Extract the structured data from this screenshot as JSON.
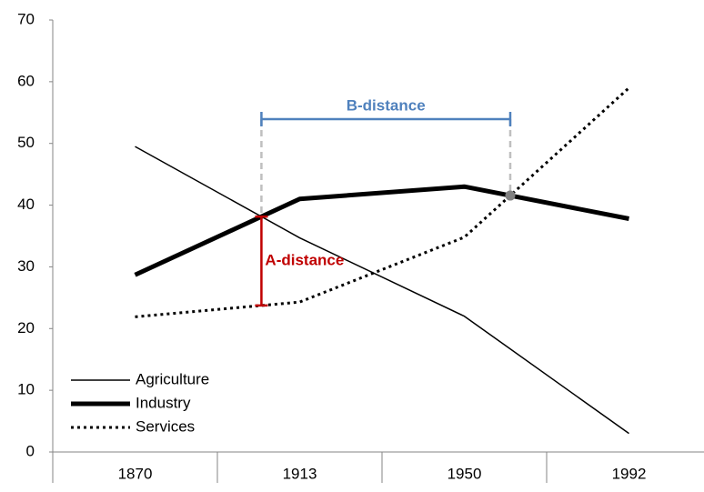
{
  "chart_data": {
    "type": "line",
    "categories": [
      "1870",
      "1913",
      "1950",
      "1992"
    ],
    "series": [
      {
        "name": "Agriculture",
        "color": "#000000",
        "width": 1.5,
        "dash": "solid",
        "values": [
          49.5,
          34.7,
          22,
          3
        ]
      },
      {
        "name": "Industry",
        "color": "#000000",
        "width": 5,
        "dash": "solid",
        "values": [
          28.7,
          41,
          43,
          37.8
        ]
      },
      {
        "name": "Services",
        "color": "#000000",
        "width": 3,
        "dash": "dotted",
        "values": [
          21.9,
          24.3,
          34.8,
          59
        ]
      }
    ],
    "ylim": [
      0,
      70
    ],
    "yticks": [
      0,
      10,
      20,
      30,
      40,
      50,
      60,
      70
    ],
    "grid": false,
    "legend": "lower left",
    "annotations": [
      {
        "text": "A-distance",
        "color": "#c00000"
      },
      {
        "text": "B-distance",
        "color": "#4f81bd"
      }
    ]
  }
}
